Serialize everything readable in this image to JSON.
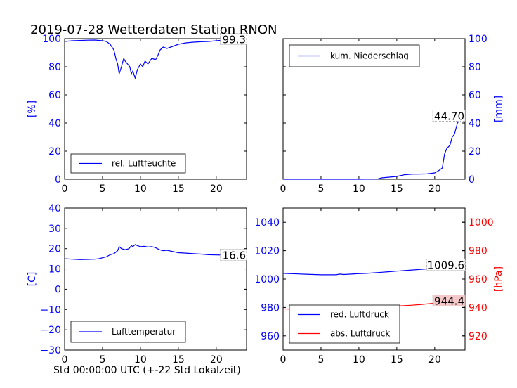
{
  "figure": {
    "title": "2019-07-28 Wetterdaten Station RNON",
    "xlabel": "Std 00:00:00 UTC (+-22 Std Lokalzeit)"
  },
  "colors": {
    "blue": "#0000ff",
    "red": "#ff0000",
    "annotation_bg": "#f4c8c8"
  },
  "chart_data": [
    {
      "id": "humidity",
      "type": "line",
      "ylabel": "[%]",
      "xlim": [
        0,
        24
      ],
      "ylim": [
        0,
        100
      ],
      "xticks": [
        0,
        5,
        10,
        15,
        20
      ],
      "yticks": [
        0,
        20,
        40,
        60,
        80,
        100
      ],
      "y_axis_side": "left",
      "legend": "bottom-left",
      "annotation": {
        "text": "99.3",
        "x": 24,
        "y": 99.3
      },
      "series": [
        {
          "name": "rel. Luftfeuchte",
          "color": "#0000ff",
          "x": [
            0,
            1,
            2,
            3,
            4,
            5,
            5.5,
            6,
            6.5,
            6.8,
            7.0,
            7.2,
            7.5,
            7.8,
            8.0,
            8.3,
            8.6,
            8.8,
            9.0,
            9.3,
            9.6,
            9.8,
            10.0,
            10.3,
            10.6,
            11.0,
            11.5,
            12.0,
            12.3,
            12.6,
            13.0,
            13.5,
            14.0,
            14.5,
            15.0,
            16.0,
            17.0,
            18.0,
            19.0,
            20.0,
            21.0,
            22.0,
            23.0,
            24.0
          ],
          "y": [
            98,
            98.5,
            98.7,
            98.9,
            99,
            98.5,
            98,
            96,
            92,
            85,
            82,
            75,
            80,
            86,
            84,
            82,
            80,
            75,
            77,
            72,
            78,
            80,
            82,
            80,
            84,
            82,
            86,
            85,
            88,
            92,
            94,
            93,
            94,
            95,
            96,
            97,
            97.5,
            97.8,
            98,
            98.5,
            99,
            99.1,
            99.2,
            99.3
          ]
        }
      ]
    },
    {
      "id": "precipitation",
      "type": "line",
      "ylabel": "[mm]",
      "xlim": [
        0,
        24
      ],
      "ylim": [
        0,
        100
      ],
      "xticks": [
        0,
        5,
        10,
        15,
        20
      ],
      "yticks": [
        0,
        20,
        40,
        60,
        80,
        100
      ],
      "y_axis_side": "right",
      "legend": "top-left",
      "annotation": {
        "text": "44.70",
        "x": 24,
        "y": 44.7
      },
      "series": [
        {
          "name": "kum. Niederschlag",
          "color": "#0000ff",
          "x": [
            0,
            5,
            10,
            12.5,
            13,
            14,
            15,
            16,
            17,
            18,
            19,
            20,
            20.5,
            21,
            21.3,
            21.6,
            22,
            22.3,
            22.6,
            23,
            23.5,
            24
          ],
          "y": [
            0,
            0,
            0,
            0.2,
            1,
            1.5,
            2,
            3.2,
            3.6,
            3.7,
            3.8,
            4.5,
            6,
            8,
            18,
            22,
            24,
            30,
            32,
            40,
            43,
            44.7
          ]
        }
      ]
    },
    {
      "id": "temperature",
      "type": "line",
      "ylabel": "[C]",
      "xlim": [
        0,
        24
      ],
      "ylim": [
        -30,
        40
      ],
      "xticks": [
        0,
        5,
        10,
        15,
        20
      ],
      "yticks": [
        -30,
        -20,
        -10,
        0,
        10,
        20,
        30,
        40
      ],
      "y_axis_side": "left",
      "legend": "bottom-left",
      "annotation": {
        "text": "16.6",
        "x": 24,
        "y": 16.6
      },
      "series": [
        {
          "name": "Lufttemperatur",
          "color": "#0000ff",
          "x": [
            0,
            1,
            2,
            3,
            4,
            4.5,
            5,
            5.5,
            6,
            6.5,
            7,
            7.2,
            7.5,
            8,
            8.5,
            8.8,
            9,
            9.3,
            9.6,
            10,
            10.5,
            11,
            11.5,
            12,
            12.5,
            13,
            13.5,
            14,
            15,
            16,
            17,
            18,
            19,
            20,
            21,
            22,
            23,
            24
          ],
          "y": [
            15,
            14.8,
            14.6,
            14.7,
            14.8,
            15,
            15.5,
            16,
            17,
            17.5,
            19,
            21,
            20,
            19.5,
            20,
            21.5,
            21,
            22,
            21.5,
            21,
            21.2,
            20.8,
            21,
            20.5,
            19.5,
            19,
            19.2,
            18.8,
            18,
            17.8,
            17.5,
            17.3,
            17,
            16.9,
            16.8,
            16.7,
            16.6,
            16.6
          ]
        }
      ]
    },
    {
      "id": "pressure",
      "type": "line",
      "ylabel": "[hPa]",
      "xlim": [
        0,
        24
      ],
      "ylim": [
        950,
        1050
      ],
      "ylim_right": [
        910,
        1010
      ],
      "xticks": [
        0,
        5,
        10,
        15,
        20
      ],
      "yticks": [
        960,
        980,
        1000,
        1020,
        1040
      ],
      "yticks_right": [
        920,
        940,
        960,
        980,
        1000
      ],
      "y_axis_side": "both",
      "legend": "bottom-left",
      "annotations": [
        {
          "text": "1009.6",
          "x": 24,
          "y": 1009.6,
          "axis": "left"
        },
        {
          "text": "944.4",
          "x": 24,
          "y": 944.4,
          "axis": "right",
          "highlight": true
        }
      ],
      "series": [
        {
          "name": "red. Luftdruck",
          "color": "#0000ff",
          "axis": "left",
          "x": [
            0,
            1,
            2,
            3,
            4,
            5,
            6,
            7,
            7.5,
            8,
            9,
            10,
            11,
            12,
            13,
            14,
            15,
            16,
            17,
            18,
            19,
            20,
            21,
            22,
            23,
            24
          ],
          "y": [
            1004,
            1003.8,
            1003.6,
            1003.4,
            1003.2,
            1003,
            1003,
            1003,
            1003.5,
            1003.2,
            1003.5,
            1003.8,
            1004,
            1004.4,
            1004.8,
            1005.2,
            1005.6,
            1006,
            1006.4,
            1006.8,
            1007.2,
            1007.6,
            1008.2,
            1008.8,
            1009.2,
            1009.6
          ]
        },
        {
          "name": "abs. Luftdruck",
          "color": "#ff0000",
          "axis": "right",
          "x": [
            0,
            1,
            2,
            3,
            4,
            5,
            6,
            7,
            7.5,
            8,
            9,
            10,
            11,
            12,
            13,
            14,
            15,
            16,
            17,
            18,
            19,
            20,
            21,
            22,
            23,
            24
          ],
          "y": [
            939,
            938.8,
            938.6,
            938.4,
            938.3,
            938.4,
            938.6,
            938.8,
            939.6,
            939.4,
            939.8,
            940.1,
            940.3,
            940.5,
            940.7,
            940.9,
            941.1,
            941.3,
            941.6,
            942,
            942.5,
            943,
            943.5,
            943.9,
            944.2,
            944.4
          ]
        }
      ]
    }
  ]
}
